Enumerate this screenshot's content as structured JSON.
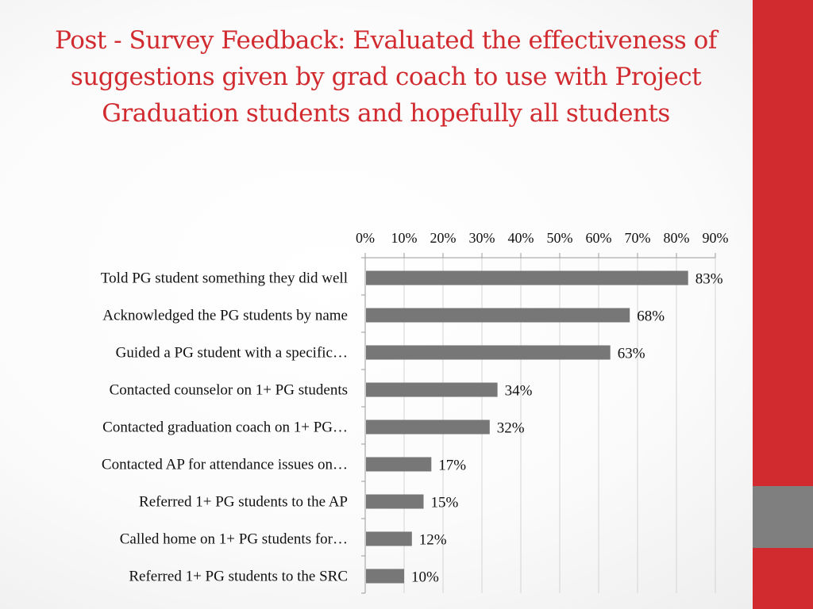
{
  "slide": {
    "title": "Post - Survey Feedback:  Evaluated the effectiveness of suggestions given by grad coach to use with Project Graduation students and hopefully all students",
    "accent_color": "#d12a2f",
    "secondary_color": "#7f7f7f"
  },
  "chart_data": {
    "type": "bar",
    "orientation": "horizontal",
    "title": "",
    "xlabel": "",
    "ylabel": "",
    "xlim": [
      0,
      90
    ],
    "ticks": [
      "0%",
      "10%",
      "20%",
      "30%",
      "40%",
      "50%",
      "60%",
      "70%",
      "80%",
      "90%"
    ],
    "tick_position": "top",
    "grid": true,
    "bar_color": "#777777",
    "categories": [
      "Told PG student something  they did well",
      "Acknowledged the PG students by name",
      "Guided a PG student with a specific…",
      "Contacted counselor on 1+ PG students",
      "Contacted graduation coach on 1+ PG…",
      "Contacted AP for attendance issues on…",
      "Referred 1+ PG students to the AP",
      "Called home on 1+ PG students for…",
      "Referred 1+ PG students to the SRC"
    ],
    "values": [
      83,
      68,
      63,
      34,
      32,
      17,
      15,
      12,
      10
    ],
    "labels": [
      "83%",
      "68%",
      "63%",
      "34%",
      "32%",
      "17%",
      "15%",
      "12%",
      "10%"
    ]
  }
}
